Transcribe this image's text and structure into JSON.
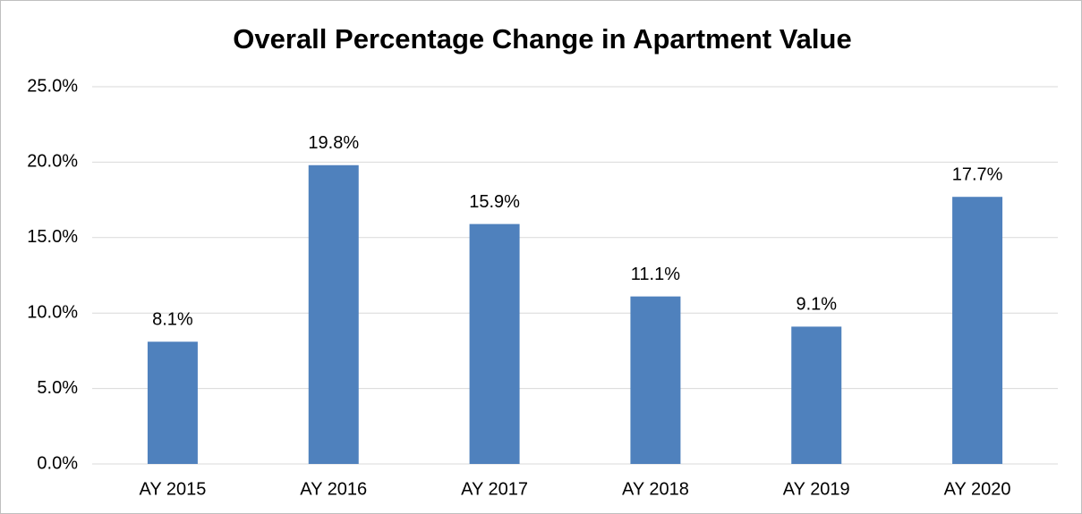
{
  "chart_data": {
    "type": "bar",
    "title": "Overall Percentage Change in Apartment Value",
    "categories": [
      "AY 2015",
      "AY 2016",
      "AY 2017",
      "AY 2018",
      "AY 2019",
      "AY 2020"
    ],
    "values": [
      8.1,
      19.8,
      15.9,
      11.1,
      9.1,
      17.7
    ],
    "value_labels": [
      "8.1%",
      "19.8%",
      "15.9%",
      "11.1%",
      "9.1%",
      "17.7%"
    ],
    "color": "#4f81bd",
    "ylim": [
      0,
      25
    ],
    "yticks": [
      {
        "value": 0,
        "label": "0.0%"
      },
      {
        "value": 5,
        "label": "5.0%"
      },
      {
        "value": 10,
        "label": "10.0%"
      },
      {
        "value": 15,
        "label": "15.0%"
      },
      {
        "value": 20,
        "label": "20.0%"
      },
      {
        "value": 25,
        "label": "25.0%"
      }
    ],
    "grid": true
  }
}
